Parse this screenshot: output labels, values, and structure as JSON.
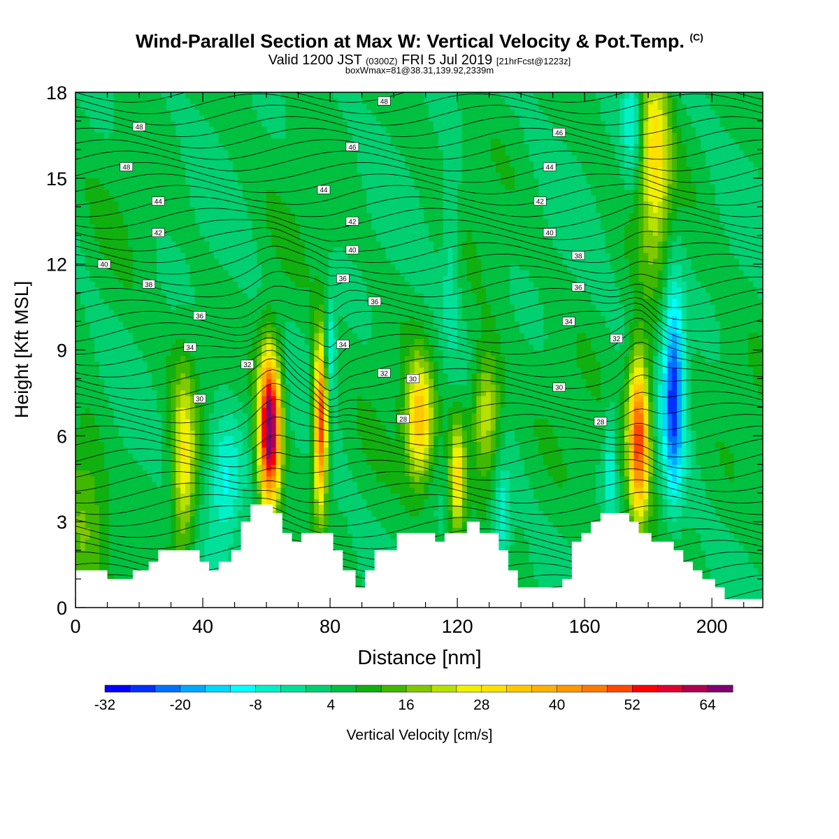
{
  "title": {
    "line1": "Wind-Parallel Section at Max W: Vertical Velocity & Pot.Temp.",
    "line1_mark": "(C)",
    "line2_a": "Valid 1200 JST",
    "line2_b": "(0300Z)",
    "line2_c": "FRI 5 Jul 2019",
    "line2_d": "[21hrFcst@1223z]",
    "line3": "boxWmax=81@38.31,139.92,2339m"
  },
  "chart_data": {
    "type": "heatmap",
    "xlabel": "Distance [nm]",
    "ylabel": "Height [Kft MSL]",
    "xlim": [
      0,
      216
    ],
    "ylim": [
      0,
      18
    ],
    "x_ticks": [
      0,
      40,
      80,
      120,
      160,
      200
    ],
    "y_ticks": [
      0,
      3,
      6,
      9,
      12,
      15,
      18
    ],
    "colorbar": {
      "label": "Vertical Velocity [cm/s]",
      "ticks": [
        -32,
        -20,
        -8,
        4,
        16,
        28,
        40,
        52,
        64
      ],
      "min": -32,
      "max": 68,
      "step": 4,
      "colors": [
        "#0000ff",
        "#0030ff",
        "#0070ff",
        "#00a8ff",
        "#00d8ff",
        "#00ffff",
        "#00f0c8",
        "#00e098",
        "#00d070",
        "#00c040",
        "#10b010",
        "#40b800",
        "#80c800",
        "#b8e000",
        "#f0f000",
        "#ffe000",
        "#ffc800",
        "#ffb000",
        "#ff9800",
        "#ff7800",
        "#ff4800",
        "#ff0000",
        "#e00030",
        "#b00050",
        "#800070"
      ]
    },
    "terrain": [
      [
        0,
        1.3
      ],
      [
        10,
        1.3
      ],
      [
        10,
        1.0
      ],
      [
        18,
        1.0
      ],
      [
        18,
        1.3
      ],
      [
        23,
        1.3
      ],
      [
        23,
        1.6
      ],
      [
        26,
        1.6
      ],
      [
        26,
        2.0
      ],
      [
        39,
        2.0
      ],
      [
        39,
        1.6
      ],
      [
        42,
        1.6
      ],
      [
        42,
        1.3
      ],
      [
        45,
        1.3
      ],
      [
        45,
        1.6
      ],
      [
        49,
        1.6
      ],
      [
        49,
        2.0
      ],
      [
        52,
        2.0
      ],
      [
        52,
        3.0
      ],
      [
        55,
        3.0
      ],
      [
        55,
        3.6
      ],
      [
        62,
        3.6
      ],
      [
        62,
        3.3
      ],
      [
        65,
        3.3
      ],
      [
        65,
        2.6
      ],
      [
        68,
        2.6
      ],
      [
        68,
        2.3
      ],
      [
        71,
        2.3
      ],
      [
        71,
        2.6
      ],
      [
        81,
        2.6
      ],
      [
        81,
        2.0
      ],
      [
        84,
        2.0
      ],
      [
        84,
        1.3
      ],
      [
        88,
        1.3
      ],
      [
        88,
        0.7
      ],
      [
        91,
        0.7
      ],
      [
        91,
        1.3
      ],
      [
        94,
        1.3
      ],
      [
        94,
        2.0
      ],
      [
        101,
        2.0
      ],
      [
        101,
        2.6
      ],
      [
        113,
        2.6
      ],
      [
        113,
        2.3
      ],
      [
        116,
        2.3
      ],
      [
        116,
        2.6
      ],
      [
        123,
        2.6
      ],
      [
        123,
        3.0
      ],
      [
        127,
        3.0
      ],
      [
        127,
        2.6
      ],
      [
        133,
        2.6
      ],
      [
        133,
        2.0
      ],
      [
        136,
        2.0
      ],
      [
        136,
        1.3
      ],
      [
        139,
        1.3
      ],
      [
        139,
        0.7
      ],
      [
        153,
        0.7
      ],
      [
        153,
        1.0
      ],
      [
        156,
        1.0
      ],
      [
        156,
        2.3
      ],
      [
        159,
        2.3
      ],
      [
        159,
        2.6
      ],
      [
        162,
        2.6
      ],
      [
        162,
        3.0
      ],
      [
        165,
        3.0
      ],
      [
        165,
        3.3
      ],
      [
        174,
        3.3
      ],
      [
        174,
        3.0
      ],
      [
        177,
        3.0
      ],
      [
        177,
        2.6
      ],
      [
        181,
        2.6
      ],
      [
        181,
        2.3
      ],
      [
        188,
        2.3
      ],
      [
        188,
        2.0
      ],
      [
        191,
        2.0
      ],
      [
        191,
        1.6
      ],
      [
        194,
        1.6
      ],
      [
        194,
        1.3
      ],
      [
        197,
        1.3
      ],
      [
        197,
        1.0
      ],
      [
        201,
        1.0
      ],
      [
        201,
        0.7
      ],
      [
        204,
        0.7
      ],
      [
        204,
        0.3
      ],
      [
        216,
        0.3
      ]
    ],
    "updrafts": [
      {
        "x": 34,
        "y": 5.0,
        "peak": 22,
        "sx": 2.6,
        "sy": 2.3
      },
      {
        "x": 61,
        "y": 6.2,
        "peak": 66,
        "sx": 2.4,
        "sy": 1.9
      },
      {
        "x": 77,
        "y": 6.5,
        "peak": 50,
        "sx": 1.5,
        "sy": 2.0
      },
      {
        "x": 108,
        "y": 6.5,
        "peak": 30,
        "sx": 3.0,
        "sy": 1.5
      },
      {
        "x": 120,
        "y": 4.6,
        "peak": 26,
        "sx": 1.8,
        "sy": 1.5
      },
      {
        "x": 129,
        "y": 6.8,
        "peak": 22,
        "sx": 3.2,
        "sy": 1.5
      },
      {
        "x": 177,
        "y": 6.0,
        "peak": 48,
        "sx": 2.4,
        "sy": 2.0
      },
      {
        "x": 182,
        "y": 15.8,
        "peak": 24,
        "sx": 3.5,
        "sy": 2.6
      },
      {
        "x": 3,
        "y": 3.5,
        "peak": 12,
        "sx": 5.0,
        "sy": 2.0
      }
    ],
    "downdrafts": [
      {
        "x": 47,
        "y": 4.5,
        "peak": -16,
        "sx": 4.0,
        "sy": 1.6
      },
      {
        "x": 80,
        "y": 9.0,
        "peak": -16,
        "sx": 1.3,
        "sy": 1.2
      },
      {
        "x": 134,
        "y": 3.0,
        "peak": -14,
        "sx": 2.0,
        "sy": 1.2
      },
      {
        "x": 188,
        "y": 7.6,
        "peak": -30,
        "sx": 2.4,
        "sy": 2.6
      },
      {
        "x": 168,
        "y": 5.0,
        "peak": -12,
        "sx": 1.2,
        "sy": 1.5
      },
      {
        "x": 175,
        "y": 17.0,
        "peak": -14,
        "sx": 2.2,
        "sy": 1.5
      },
      {
        "x": 118,
        "y": 12.5,
        "peak": -8,
        "sx": 2.0,
        "sy": 2.5
      }
    ],
    "contour_labels": [
      {
        "text": "48",
        "x": 97,
        "y": 17.7
      },
      {
        "text": "48",
        "x": 20,
        "y": 16.8
      },
      {
        "text": "48",
        "x": 16,
        "y": 15.4
      },
      {
        "text": "46",
        "x": 87,
        "y": 16.1
      },
      {
        "text": "46",
        "x": 152,
        "y": 16.6
      },
      {
        "text": "44",
        "x": 26,
        "y": 14.2
      },
      {
        "text": "44",
        "x": 78,
        "y": 14.6
      },
      {
        "text": "44",
        "x": 149,
        "y": 15.4
      },
      {
        "text": "42",
        "x": 26,
        "y": 13.1
      },
      {
        "text": "42",
        "x": 87,
        "y": 13.5
      },
      {
        "text": "42",
        "x": 146,
        "y": 14.2
      },
      {
        "text": "40",
        "x": 9,
        "y": 12.0
      },
      {
        "text": "40",
        "x": 87,
        "y": 12.5
      },
      {
        "text": "40",
        "x": 149,
        "y": 13.1
      },
      {
        "text": "38",
        "x": 23,
        "y": 11.3
      },
      {
        "text": "38",
        "x": 158,
        "y": 12.3
      },
      {
        "text": "36",
        "x": 39,
        "y": 10.2
      },
      {
        "text": "36",
        "x": 84,
        "y": 11.5
      },
      {
        "text": "36",
        "x": 94,
        "y": 10.7
      },
      {
        "text": "36",
        "x": 158,
        "y": 11.2
      },
      {
        "text": "34",
        "x": 36,
        "y": 9.1
      },
      {
        "text": "34",
        "x": 84,
        "y": 9.2
      },
      {
        "text": "34",
        "x": 155,
        "y": 10.0
      },
      {
        "text": "32",
        "x": 54,
        "y": 8.5
      },
      {
        "text": "32",
        "x": 97,
        "y": 8.2
      },
      {
        "text": "32",
        "x": 170,
        "y": 9.4
      },
      {
        "text": "30",
        "x": 39,
        "y": 7.3
      },
      {
        "text": "30",
        "x": 106,
        "y": 8.0
      },
      {
        "text": "30",
        "x": 152,
        "y": 7.7
      },
      {
        "text": "28",
        "x": 103,
        "y": 6.6
      },
      {
        "text": "28",
        "x": 165,
        "y": 6.5
      }
    ]
  }
}
